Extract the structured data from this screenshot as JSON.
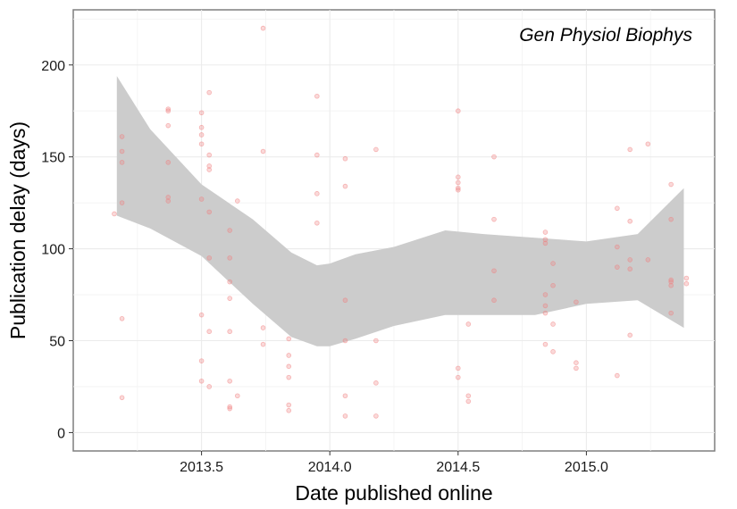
{
  "chart_data": {
    "type": "scatter",
    "title": "",
    "annotation": "Gen Physiol Biophys",
    "xlabel": "Date published online",
    "ylabel": "Publication delay (days)",
    "xlim": [
      2013.0,
      2015.5
    ],
    "ylim": [
      -10,
      230
    ],
    "x_ticks": [
      2013.5,
      2014.0,
      2014.5,
      2015.0
    ],
    "x_tick_labels": [
      "2013.5",
      "2014.0",
      "2014.5",
      "2015.0"
    ],
    "y_ticks": [
      0,
      50,
      100,
      150,
      200
    ],
    "y_tick_labels": [
      "0",
      "50",
      "100",
      "150",
      "200"
    ],
    "grid": true,
    "point_color": "#f08080",
    "band_color": "#cccccc",
    "points": [
      [
        2013.16,
        119
      ],
      [
        2013.19,
        161
      ],
      [
        2013.19,
        153
      ],
      [
        2013.19,
        147
      ],
      [
        2013.19,
        125
      ],
      [
        2013.19,
        62
      ],
      [
        2013.19,
        19
      ],
      [
        2013.37,
        176
      ],
      [
        2013.37,
        175
      ],
      [
        2013.37,
        167
      ],
      [
        2013.37,
        147
      ],
      [
        2013.37,
        128
      ],
      [
        2013.37,
        126
      ],
      [
        2013.5,
        174
      ],
      [
        2013.5,
        166
      ],
      [
        2013.5,
        162
      ],
      [
        2013.5,
        157
      ],
      [
        2013.5,
        127
      ],
      [
        2013.5,
        64
      ],
      [
        2013.5,
        39
      ],
      [
        2013.5,
        28
      ],
      [
        2013.53,
        185
      ],
      [
        2013.53,
        151
      ],
      [
        2013.53,
        145
      ],
      [
        2013.53,
        143
      ],
      [
        2013.53,
        120
      ],
      [
        2013.53,
        95
      ],
      [
        2013.53,
        55
      ],
      [
        2013.53,
        25
      ],
      [
        2013.61,
        110
      ],
      [
        2013.61,
        95
      ],
      [
        2013.61,
        82
      ],
      [
        2013.61,
        73
      ],
      [
        2013.61,
        55
      ],
      [
        2013.61,
        28
      ],
      [
        2013.61,
        14
      ],
      [
        2013.61,
        13
      ],
      [
        2013.64,
        126
      ],
      [
        2013.64,
        20
      ],
      [
        2013.74,
        220
      ],
      [
        2013.74,
        153
      ],
      [
        2013.74,
        57
      ],
      [
        2013.74,
        48
      ],
      [
        2013.84,
        51
      ],
      [
        2013.84,
        42
      ],
      [
        2013.84,
        36
      ],
      [
        2013.84,
        30
      ],
      [
        2013.84,
        15
      ],
      [
        2013.84,
        12
      ],
      [
        2013.95,
        183
      ],
      [
        2013.95,
        151
      ],
      [
        2013.95,
        130
      ],
      [
        2013.95,
        114
      ],
      [
        2014.06,
        149
      ],
      [
        2014.06,
        134
      ],
      [
        2014.06,
        72
      ],
      [
        2014.06,
        50
      ],
      [
        2014.06,
        20
      ],
      [
        2014.06,
        9
      ],
      [
        2014.18,
        154
      ],
      [
        2014.18,
        50
      ],
      [
        2014.18,
        27
      ],
      [
        2014.18,
        9
      ],
      [
        2014.5,
        175
      ],
      [
        2014.5,
        139
      ],
      [
        2014.5,
        136
      ],
      [
        2014.5,
        133
      ],
      [
        2014.5,
        132
      ],
      [
        2014.5,
        35
      ],
      [
        2014.5,
        30
      ],
      [
        2014.54,
        59
      ],
      [
        2014.54,
        20
      ],
      [
        2014.54,
        17
      ],
      [
        2014.64,
        150
      ],
      [
        2014.64,
        116
      ],
      [
        2014.64,
        88
      ],
      [
        2014.64,
        72
      ],
      [
        2014.84,
        109
      ],
      [
        2014.84,
        105
      ],
      [
        2014.84,
        103
      ],
      [
        2014.84,
        75
      ],
      [
        2014.84,
        69
      ],
      [
        2014.84,
        65
      ],
      [
        2014.84,
        48
      ],
      [
        2014.87,
        92
      ],
      [
        2014.87,
        80
      ],
      [
        2014.87,
        59
      ],
      [
        2014.87,
        44
      ],
      [
        2014.96,
        71
      ],
      [
        2014.96,
        38
      ],
      [
        2014.96,
        35
      ],
      [
        2015.12,
        122
      ],
      [
        2015.12,
        101
      ],
      [
        2015.12,
        90
      ],
      [
        2015.12,
        31
      ],
      [
        2015.17,
        154
      ],
      [
        2015.17,
        115
      ],
      [
        2015.17,
        94
      ],
      [
        2015.17,
        89
      ],
      [
        2015.17,
        53
      ],
      [
        2015.24,
        157
      ],
      [
        2015.24,
        94
      ],
      [
        2015.33,
        135
      ],
      [
        2015.33,
        116
      ],
      [
        2015.33,
        83
      ],
      [
        2015.33,
        82
      ],
      [
        2015.33,
        80
      ],
      [
        2015.33,
        65
      ],
      [
        2015.39,
        84
      ],
      [
        2015.39,
        81
      ]
    ],
    "smooth": {
      "x": [
        2013.17,
        2013.3,
        2013.5,
        2013.7,
        2013.85,
        2013.95,
        2014.0,
        2014.1,
        2014.25,
        2014.45,
        2014.6,
        2014.8,
        2015.0,
        2015.2,
        2015.38
      ],
      "upper": [
        194,
        165,
        135,
        116,
        98,
        91,
        92,
        97,
        101,
        110,
        108,
        106,
        104,
        108,
        133
      ],
      "lower": [
        118,
        111,
        96,
        70,
        52,
        47,
        47,
        51,
        58,
        64,
        64,
        64,
        70,
        72,
        57
      ]
    }
  }
}
